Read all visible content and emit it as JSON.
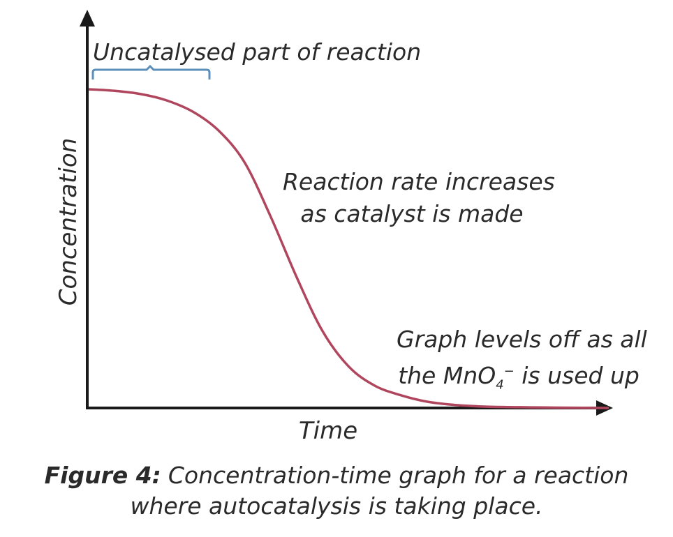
{
  "chart_data": {
    "type": "line",
    "xlabel": "Time",
    "ylabel": "Concentration",
    "series": [
      {
        "x": [
          0,
          0.05,
          0.1,
          0.15,
          0.2,
          0.25,
          0.3,
          0.35,
          0.4,
          0.45,
          0.5,
          0.55,
          0.6,
          0.65,
          0.7,
          0.75,
          0.8,
          0.85,
          0.9,
          0.95,
          1.0
        ],
        "values": [
          1.0,
          0.995,
          0.985,
          0.965,
          0.93,
          0.87,
          0.77,
          0.6,
          0.41,
          0.24,
          0.13,
          0.07,
          0.04,
          0.02,
          0.01,
          0.005,
          0.003,
          0.002,
          0.001,
          0.0005,
          0.0
        ]
      }
    ],
    "grid": false,
    "annotations": [
      {
        "text": "Uncatalysed part of reaction"
      },
      {
        "line1": "Reaction rate increases",
        "line2": "as catalyst is made"
      },
      {
        "line1": "Graph levels off as all",
        "line2_pre": "the MnO",
        "line2_sub": "4",
        "line2_sup": "−",
        "line2_post": " is used up"
      }
    ]
  },
  "caption": {
    "figure": "Figure 4:",
    "line1": "Concentration-time graph for a reaction",
    "line2": "where autocatalysis is taking place."
  },
  "colors": {
    "curve": "#b0465e",
    "axes": "#1a1a1a",
    "brace": "#5b8fb9"
  }
}
